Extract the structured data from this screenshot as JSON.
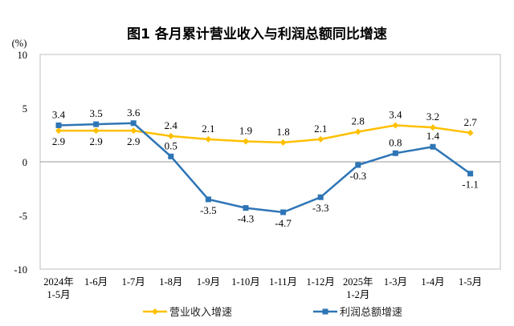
{
  "chart_data": {
    "type": "line",
    "title": "图1  各月累计营业收入与利润总额同比增速",
    "ylabel": "(%)",
    "ylim": [
      -10,
      10
    ],
    "yticks": [
      "10",
      "5",
      "0",
      "-5",
      "-10"
    ],
    "grid": false,
    "legend": "bottom",
    "categories": [
      [
        "2024年",
        "1-5月"
      ],
      [
        "1-6月"
      ],
      [
        "1-7月"
      ],
      [
        "1-8月"
      ],
      [
        "1-9月"
      ],
      [
        "1-10月"
      ],
      [
        "1-11月"
      ],
      [
        "1-12月"
      ],
      [
        "2025年",
        "1-2月"
      ],
      [
        "1-3月"
      ],
      [
        "1-4月"
      ],
      [
        "1-5月"
      ]
    ],
    "series": [
      {
        "name": "营业收入增速",
        "color": "#FFC000",
        "marker": "diamond",
        "values": [
          2.9,
          2.9,
          2.9,
          2.4,
          2.1,
          1.9,
          1.8,
          2.1,
          2.8,
          3.4,
          3.2,
          2.7
        ]
      },
      {
        "name": "利润总额增速",
        "color": "#2E75B6",
        "marker": "square",
        "values": [
          3.4,
          3.5,
          3.6,
          0.5,
          -3.5,
          -4.3,
          -4.7,
          -3.3,
          -0.3,
          0.8,
          1.4,
          -1.1
        ]
      }
    ]
  }
}
